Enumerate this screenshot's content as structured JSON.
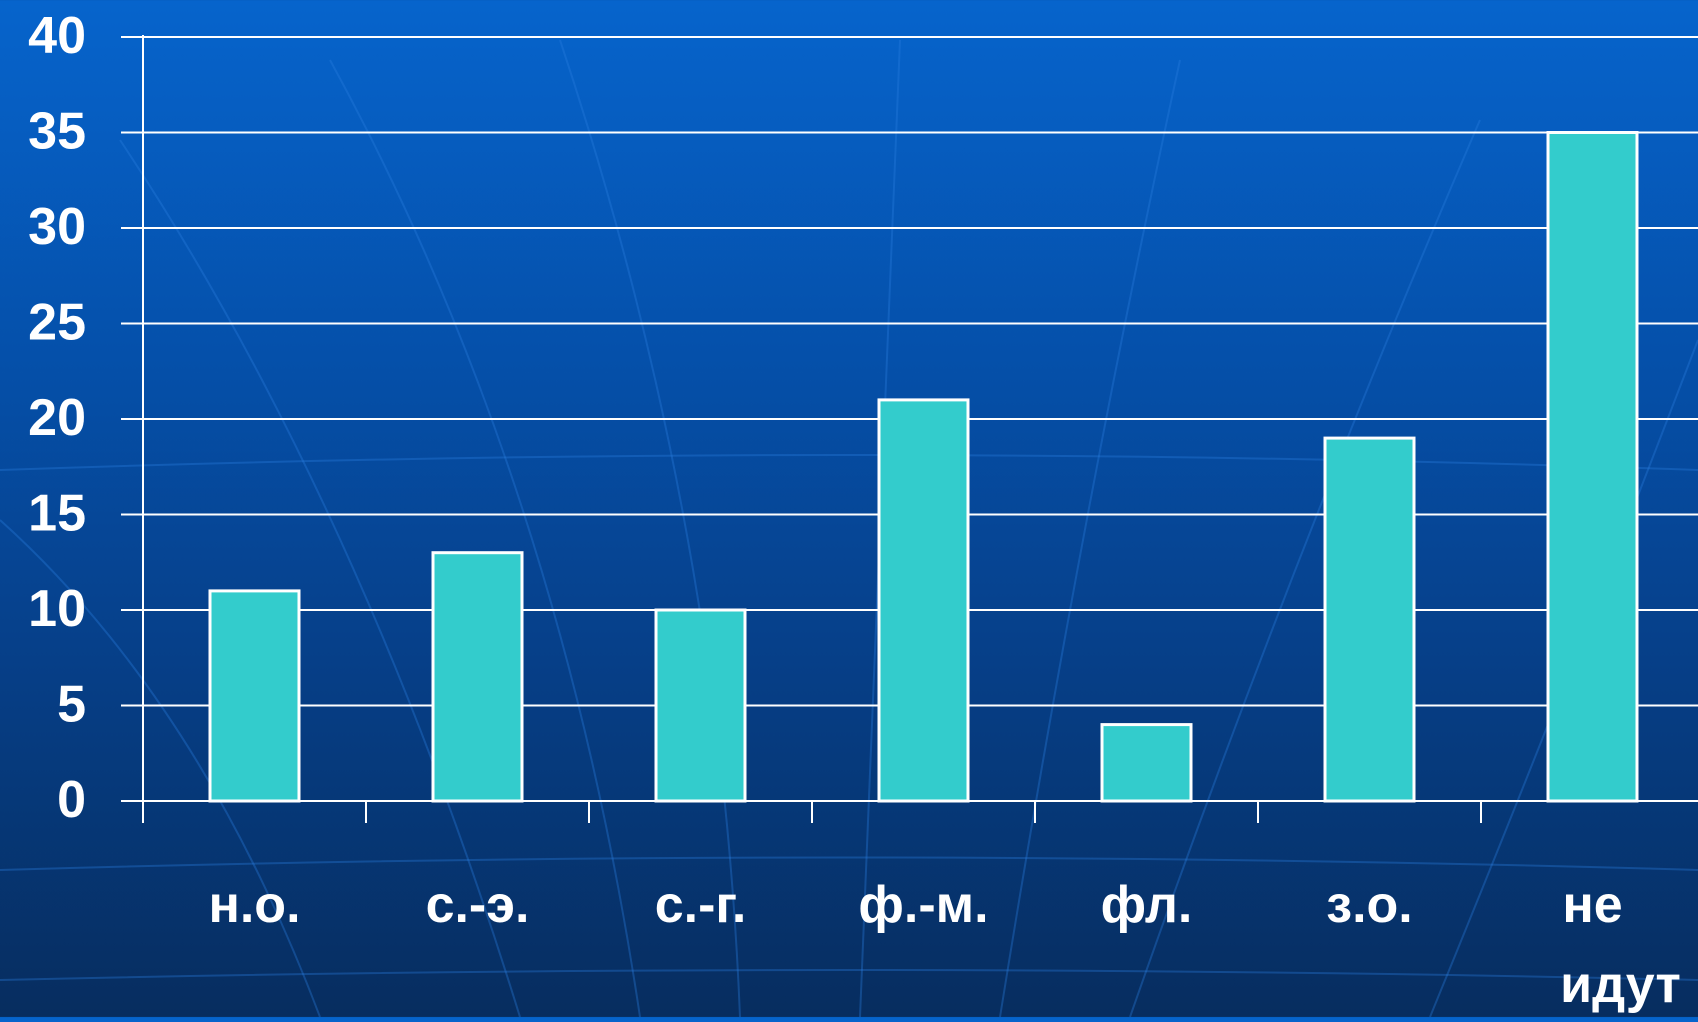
{
  "colors": {
    "background_top": "#0664cc",
    "background_bottom": "#072d5f",
    "bar_fill": "#33cccc",
    "bar_stroke": "#ffffff",
    "grid": "#ffffff",
    "text": "#ffffff"
  },
  "chart_data": {
    "type": "bar",
    "title": "",
    "xlabel": "",
    "ylabel": "",
    "categories": [
      "н.о.",
      "с.-э.",
      "с.-г.",
      "ф.-м.",
      "фл.",
      "з.о.",
      "не идут"
    ],
    "category_lines": [
      [
        "н.о."
      ],
      [
        "с.-э."
      ],
      [
        "с.-г."
      ],
      [
        "ф.-м."
      ],
      [
        "фл."
      ],
      [
        "з.о."
      ],
      [
        "не",
        "идут"
      ]
    ],
    "values": [
      11,
      13,
      10,
      21,
      4,
      19,
      35
    ],
    "ylim": [
      0,
      40
    ],
    "yticks": [
      0,
      5,
      10,
      15,
      20,
      25,
      30,
      35,
      40
    ],
    "grid": true,
    "legend": "none"
  }
}
